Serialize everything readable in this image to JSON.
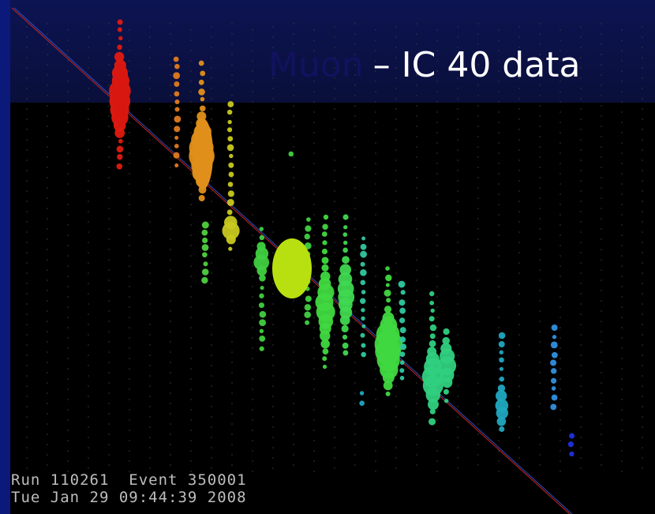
{
  "title": {
    "highlight": "Muon",
    "rest": "– IC 40 data"
  },
  "event_info": {
    "line1": "Run 110261  Event 350001",
    "line2": "Tue Jan 29 09:44:39 2008"
  }
}
